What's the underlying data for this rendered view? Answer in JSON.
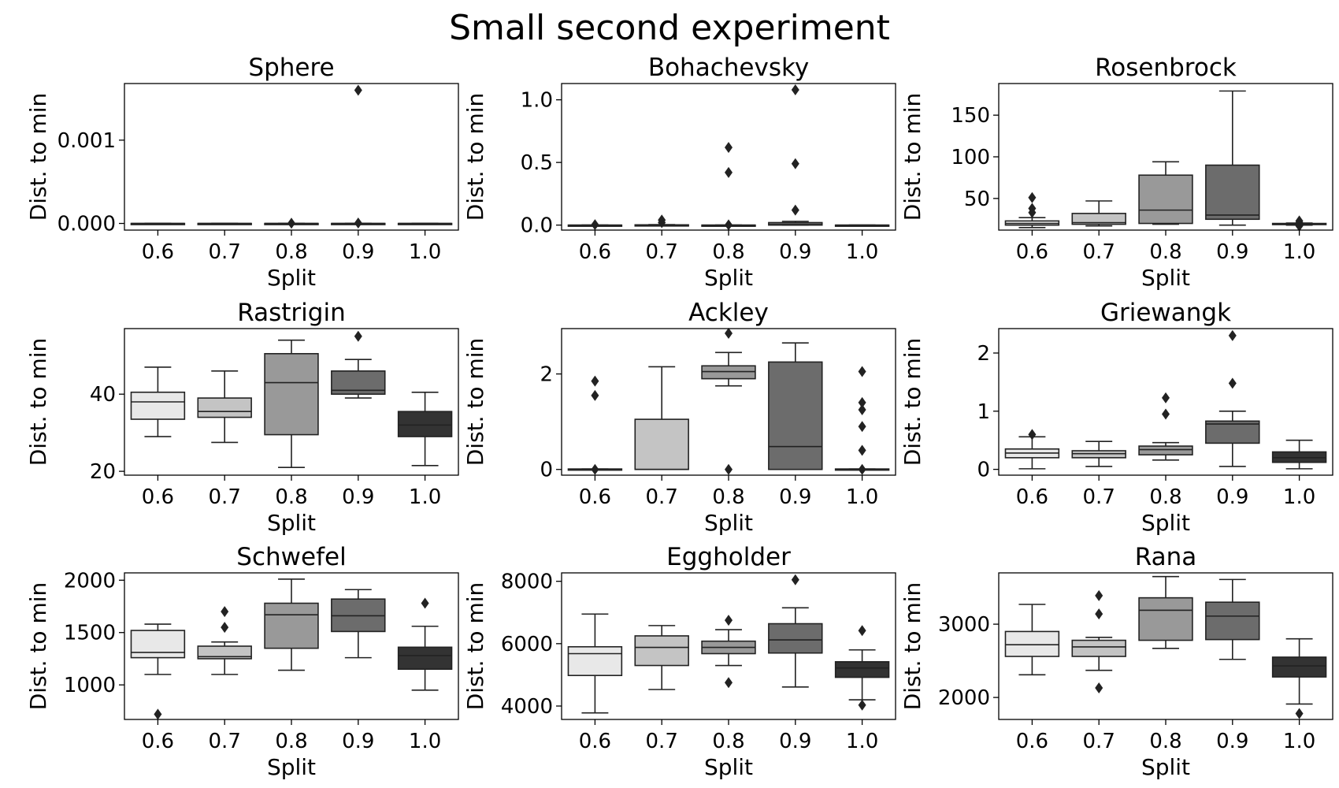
{
  "suptitle": "Small second experiment",
  "chart_data": [
    {
      "type": "box",
      "title": "Sphere",
      "xlabel": "Split",
      "ylabel": "Dist. to min",
      "categories": [
        "0.6",
        "0.7",
        "0.8",
        "0.9",
        "1.0"
      ],
      "ylim": [
        -8e-05,
        0.00168
      ],
      "yticks": [
        0,
        0.001
      ],
      "yticklabels": [
        "0.000",
        "0.001"
      ],
      "boxes": [
        {
          "min": 0,
          "q1": 0,
          "median": 0,
          "q3": 0,
          "max": 0,
          "outliers": []
        },
        {
          "min": 0,
          "q1": 0,
          "median": 0,
          "q3": 0,
          "max": 0,
          "outliers": []
        },
        {
          "min": 0,
          "q1": 0,
          "median": 0,
          "q3": 0,
          "max": 0,
          "outliers": [
            3e-06
          ]
        },
        {
          "min": 0,
          "q1": 0,
          "median": 0,
          "q3": 0,
          "max": 0,
          "outliers": [
            5e-06,
            0.0016
          ]
        },
        {
          "min": 0,
          "q1": 0,
          "median": 0,
          "q3": 0,
          "max": 0,
          "outliers": []
        }
      ]
    },
    {
      "type": "box",
      "title": "Bohachevsky",
      "xlabel": "Split",
      "ylabel": "Dist. to min",
      "categories": [
        "0.6",
        "0.7",
        "0.8",
        "0.9",
        "1.0"
      ],
      "ylim": [
        -0.04,
        1.13
      ],
      "yticks": [
        0,
        0.5,
        1.0
      ],
      "yticklabels": [
        "0.0",
        "0.5",
        "1.0"
      ],
      "boxes": [
        {
          "min": 0,
          "q1": 0,
          "median": 0,
          "q3": 0,
          "max": 0,
          "outliers": [
            0.003
          ]
        },
        {
          "min": 0,
          "q1": 0,
          "median": 0,
          "q3": 0.002,
          "max": 0.004,
          "outliers": [
            0.02,
            0.04
          ]
        },
        {
          "min": 0,
          "q1": 0,
          "median": 0,
          "q3": 0,
          "max": 0,
          "outliers": [
            0.002,
            0.42,
            0.62
          ]
        },
        {
          "min": 0,
          "q1": 0,
          "median": 0.004,
          "q3": 0.02,
          "max": 0.03,
          "outliers": [
            0.12,
            0.49,
            1.08
          ]
        },
        {
          "min": 0,
          "q1": 0,
          "median": 0,
          "q3": 0,
          "max": 0,
          "outliers": []
        }
      ]
    },
    {
      "type": "box",
      "title": "Rosenbrock",
      "xlabel": "Split",
      "ylabel": "Dist. to min",
      "categories": [
        "0.6",
        "0.7",
        "0.8",
        "0.9",
        "1.0"
      ],
      "ylim": [
        12,
        188
      ],
      "yticks": [
        50,
        100,
        150
      ],
      "yticklabels": [
        "50",
        "100",
        "150"
      ],
      "boxes": [
        {
          "min": 15,
          "q1": 18,
          "median": 20,
          "q3": 23,
          "max": 27,
          "outliers": [
            33,
            38,
            51
          ]
        },
        {
          "min": 17,
          "q1": 19,
          "median": 21,
          "q3": 32,
          "max": 47,
          "outliers": []
        },
        {
          "min": 19,
          "q1": 20,
          "median": 36,
          "q3": 78,
          "max": 94,
          "outliers": []
        },
        {
          "min": 18,
          "q1": 25,
          "median": 30,
          "q3": 90,
          "max": 179,
          "outliers": []
        },
        {
          "min": 18,
          "q1": 19,
          "median": 19.5,
          "q3": 20,
          "max": 20.5,
          "outliers": [
            17,
            21,
            23
          ]
        }
      ]
    },
    {
      "type": "box",
      "title": "Rastrigin",
      "xlabel": "Split",
      "ylabel": "Dist. to min",
      "categories": [
        "0.6",
        "0.7",
        "0.8",
        "0.9",
        "1.0"
      ],
      "ylim": [
        19,
        57
      ],
      "yticks": [
        20,
        40
      ],
      "yticklabels": [
        "20",
        "40"
      ],
      "boxes": [
        {
          "min": 29,
          "q1": 33.5,
          "median": 38,
          "q3": 40.5,
          "max": 47,
          "outliers": []
        },
        {
          "min": 27.5,
          "q1": 34,
          "median": 35.5,
          "q3": 39,
          "max": 46,
          "outliers": []
        },
        {
          "min": 21,
          "q1": 29.5,
          "median": 43,
          "q3": 50.5,
          "max": 54,
          "outliers": []
        },
        {
          "min": 39,
          "q1": 40,
          "median": 41,
          "q3": 46,
          "max": 49,
          "outliers": [
            55
          ]
        },
        {
          "min": 21.5,
          "q1": 29,
          "median": 32,
          "q3": 35.5,
          "max": 40.5,
          "outliers": []
        }
      ]
    },
    {
      "type": "box",
      "title": "Ackley",
      "xlabel": "Split",
      "ylabel": "Dist. to min",
      "categories": [
        "0.6",
        "0.7",
        "0.8",
        "0.9",
        "1.0"
      ],
      "ylim": [
        -0.12,
        2.95
      ],
      "yticks": [
        0,
        2
      ],
      "yticklabels": [
        "0",
        "2"
      ],
      "boxes": [
        {
          "min": 0,
          "q1": 0,
          "median": 0,
          "q3": 0.01,
          "max": 0.01,
          "outliers": [
            0,
            1.55,
            1.85
          ]
        },
        {
          "min": 0,
          "q1": 0,
          "median": 0,
          "q3": 1.05,
          "max": 2.15,
          "outliers": []
        },
        {
          "min": 1.75,
          "q1": 1.9,
          "median": 2.05,
          "q3": 2.17,
          "max": 2.45,
          "outliers": [
            0,
            2.85
          ]
        },
        {
          "min": 0,
          "q1": 0,
          "median": 0.48,
          "q3": 2.25,
          "max": 2.65,
          "outliers": []
        },
        {
          "min": 0,
          "q1": 0,
          "median": 0,
          "q3": 0.01,
          "max": 0.01,
          "outliers": [
            0,
            0.4,
            0.9,
            1.25,
            1.4,
            2.05
          ]
        }
      ]
    },
    {
      "type": "box",
      "title": "Griewangk",
      "xlabel": "Split",
      "ylabel": "Dist. to min",
      "categories": [
        "0.6",
        "0.7",
        "0.8",
        "0.9",
        "1.0"
      ],
      "ylim": [
        -0.1,
        2.42
      ],
      "yticks": [
        0,
        1,
        2
      ],
      "yticklabels": [
        "0",
        "1",
        "2"
      ],
      "boxes": [
        {
          "min": 0.01,
          "q1": 0.2,
          "median": 0.28,
          "q3": 0.35,
          "max": 0.56,
          "outliers": [
            0.6
          ]
        },
        {
          "min": 0.05,
          "q1": 0.2,
          "median": 0.27,
          "q3": 0.32,
          "max": 0.48,
          "outliers": []
        },
        {
          "min": 0.16,
          "q1": 0.25,
          "median": 0.34,
          "q3": 0.4,
          "max": 0.46,
          "outliers": [
            0.95,
            1.23
          ]
        },
        {
          "min": 0.05,
          "q1": 0.45,
          "median": 0.78,
          "q3": 0.83,
          "max": 1.0,
          "outliers": [
            1.48,
            2.3
          ]
        },
        {
          "min": 0.01,
          "q1": 0.12,
          "median": 0.2,
          "q3": 0.3,
          "max": 0.5,
          "outliers": []
        }
      ]
    },
    {
      "type": "box",
      "title": "Schwefel",
      "xlabel": "Split",
      "ylabel": "Dist. to min",
      "categories": [
        "0.6",
        "0.7",
        "0.8",
        "0.9",
        "1.0"
      ],
      "ylim": [
        670,
        2070
      ],
      "yticks": [
        1000,
        1500,
        2000
      ],
      "yticklabels": [
        "1000",
        "1500",
        "2000"
      ],
      "boxes": [
        {
          "min": 1100,
          "q1": 1260,
          "median": 1310,
          "q3": 1520,
          "max": 1580,
          "outliers": [
            720
          ]
        },
        {
          "min": 1100,
          "q1": 1250,
          "median": 1270,
          "q3": 1370,
          "max": 1410,
          "outliers": [
            1550,
            1700
          ]
        },
        {
          "min": 1140,
          "q1": 1350,
          "median": 1670,
          "q3": 1780,
          "max": 2010,
          "outliers": []
        },
        {
          "min": 1260,
          "q1": 1510,
          "median": 1660,
          "q3": 1820,
          "max": 1910,
          "outliers": []
        },
        {
          "min": 950,
          "q1": 1150,
          "median": 1280,
          "q3": 1360,
          "max": 1560,
          "outliers": [
            1780
          ]
        }
      ]
    },
    {
      "type": "box",
      "title": "Eggholder",
      "xlabel": "Split",
      "ylabel": "Dist. to min",
      "categories": [
        "0.6",
        "0.7",
        "0.8",
        "0.9",
        "1.0"
      ],
      "ylim": [
        3570,
        8270
      ],
      "yticks": [
        4000,
        6000,
        8000
      ],
      "yticklabels": [
        "4000",
        "6000",
        "8000"
      ],
      "boxes": [
        {
          "min": 3780,
          "q1": 4980,
          "median": 5680,
          "q3": 5900,
          "max": 6950,
          "outliers": []
        },
        {
          "min": 4530,
          "q1": 5300,
          "median": 5880,
          "q3": 6250,
          "max": 6580,
          "outliers": []
        },
        {
          "min": 5300,
          "q1": 5680,
          "median": 5880,
          "q3": 6080,
          "max": 6450,
          "outliers": [
            4750,
            6750
          ]
        },
        {
          "min": 4610,
          "q1": 5700,
          "median": 6120,
          "q3": 6640,
          "max": 7150,
          "outliers": [
            8050
          ]
        },
        {
          "min": 4200,
          "q1": 4920,
          "median": 5220,
          "q3": 5420,
          "max": 5800,
          "outliers": [
            4030,
            6420
          ]
        }
      ]
    },
    {
      "type": "box",
      "title": "Rana",
      "xlabel": "Split",
      "ylabel": "Dist. to min",
      "categories": [
        "0.6",
        "0.7",
        "0.8",
        "0.9",
        "1.0"
      ],
      "ylim": [
        1700,
        3700
      ],
      "yticks": [
        2000,
        3000
      ],
      "yticklabels": [
        "2000",
        "3000"
      ],
      "boxes": [
        {
          "min": 2310,
          "q1": 2560,
          "median": 2720,
          "q3": 2900,
          "max": 3270,
          "outliers": []
        },
        {
          "min": 2370,
          "q1": 2560,
          "median": 2690,
          "q3": 2780,
          "max": 2820,
          "outliers": [
            2130,
            3140,
            3390
          ]
        },
        {
          "min": 2670,
          "q1": 2780,
          "median": 3190,
          "q3": 3360,
          "max": 3650,
          "outliers": []
        },
        {
          "min": 2520,
          "q1": 2790,
          "median": 3110,
          "q3": 3300,
          "max": 3610,
          "outliers": []
        },
        {
          "min": 1910,
          "q1": 2280,
          "median": 2430,
          "q3": 2550,
          "max": 2800,
          "outliers": [
            1780
          ]
        }
      ]
    }
  ],
  "box_colors": [
    "#e8e8e8",
    "#c4c4c4",
    "#999999",
    "#6c6c6c",
    "#333333"
  ]
}
